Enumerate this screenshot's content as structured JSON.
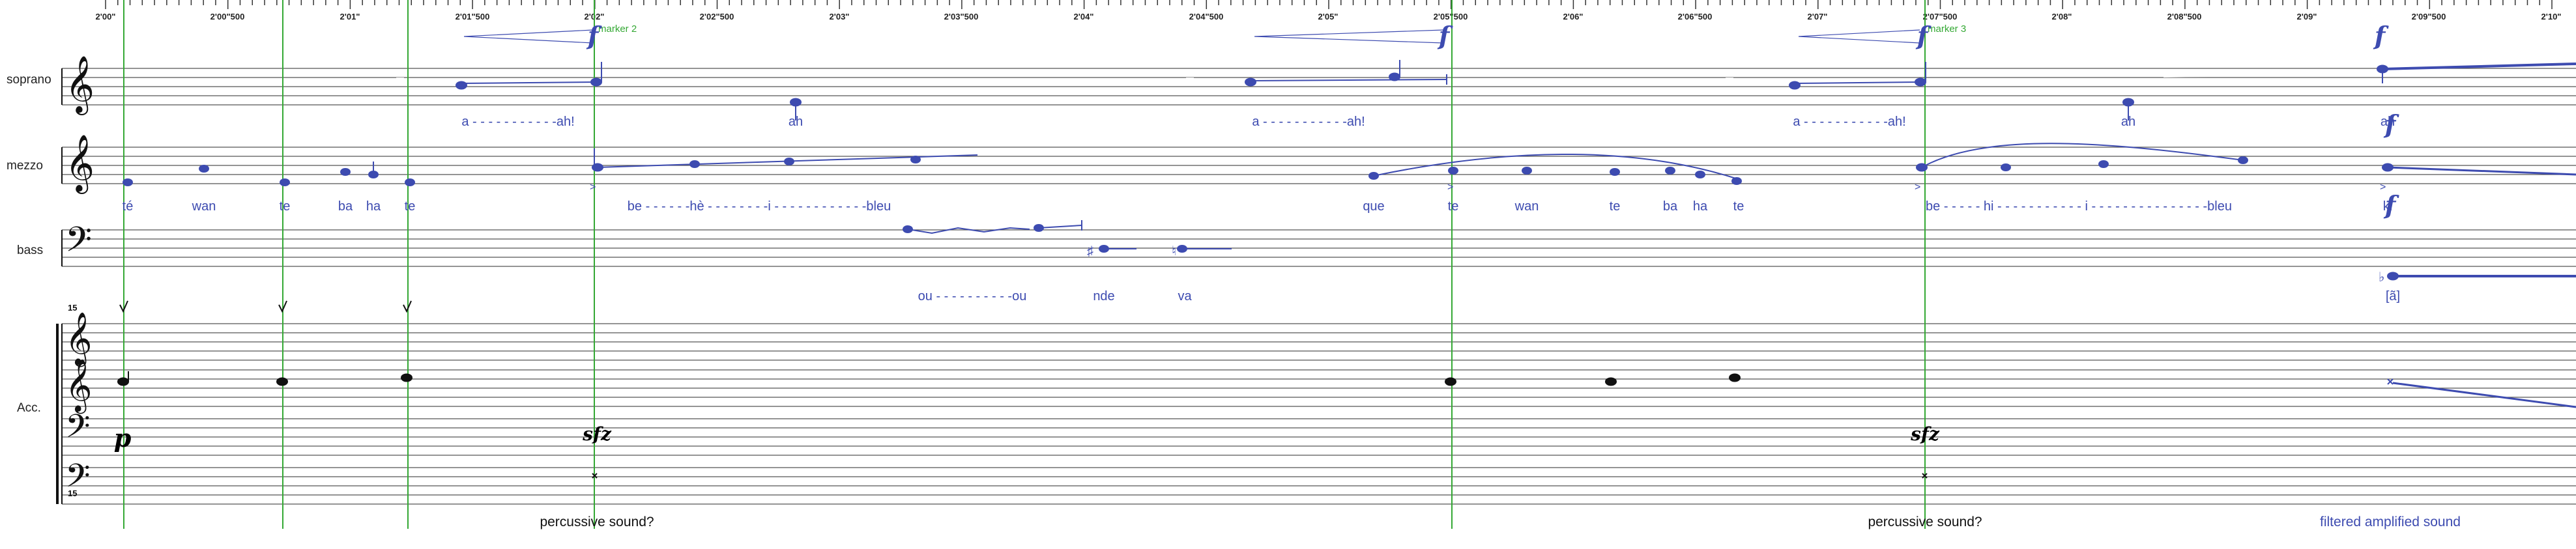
{
  "timeline": {
    "labels": [
      "2'00\"",
      "2'00\"500",
      "2'01\"",
      "2'01\"500",
      "2'02\"",
      "2'02\"500",
      "2'03\"",
      "2'03\"500",
      "2'04\"",
      "2'04\"500",
      "2'05\"",
      "2'05\"500",
      "2'06\"",
      "2'06\"500",
      "2'07\"",
      "2'07\"500",
      "2'08\"",
      "2'08\"500",
      "2'09\"",
      "2'09\"500",
      "2'10\""
    ]
  },
  "markers": [
    {
      "label": "marker 2"
    },
    {
      "label": "marker 3"
    }
  ],
  "staves": {
    "soprano": "soprano",
    "mezzo": "mezzo",
    "bass": "bass",
    "accompaniment": "Acc."
  },
  "accompaniment": {
    "octave_top": "15",
    "octave_bottom": "15"
  },
  "lyrics": {
    "soprano": [
      {
        "text": "a - - - - - - - - - - -ah!"
      },
      {
        "text": "ah"
      },
      {
        "text": "a - - - - - - - - - - -ah!"
      },
      {
        "text": "a - - - - - - - - - - -ah!"
      },
      {
        "text": "ah"
      },
      {
        "text": "ah"
      }
    ],
    "mezzo": [
      {
        "text": "té"
      },
      {
        "text": "wan"
      },
      {
        "text": "te"
      },
      {
        "text": "ba"
      },
      {
        "text": "ha"
      },
      {
        "text": "te"
      },
      {
        "text": "be - - - - - -hè - - - - - - - -i - - - - - - - - - - - -bleu"
      },
      {
        "text": "que"
      },
      {
        "text": "te"
      },
      {
        "text": "wan"
      },
      {
        "text": "te"
      },
      {
        "text": "ba"
      },
      {
        "text": "ha"
      },
      {
        "text": "te"
      },
      {
        "text": "be - - - - - hi - - - - - - - - - - - i - - - - - - - - - - - - - - -bleu"
      },
      {
        "text": "ki"
      }
    ],
    "bass": [
      {
        "text": "ou - - - - - - - - - -ou"
      },
      {
        "text": "nde"
      },
      {
        "text": "va"
      },
      {
        "text": "[ã]"
      }
    ]
  },
  "dynamics": {
    "f": "f",
    "p": "p",
    "sfz": "sfz"
  },
  "annotations": [
    {
      "text": "percussive sound?"
    },
    {
      "text": "percussive sound?"
    },
    {
      "text": "filtered amplified sound"
    }
  ],
  "colors": {
    "marker_green": "#34a834",
    "voice_blue": "#3d4bb0",
    "ink": "#111111",
    "staff_line": "#555555"
  }
}
